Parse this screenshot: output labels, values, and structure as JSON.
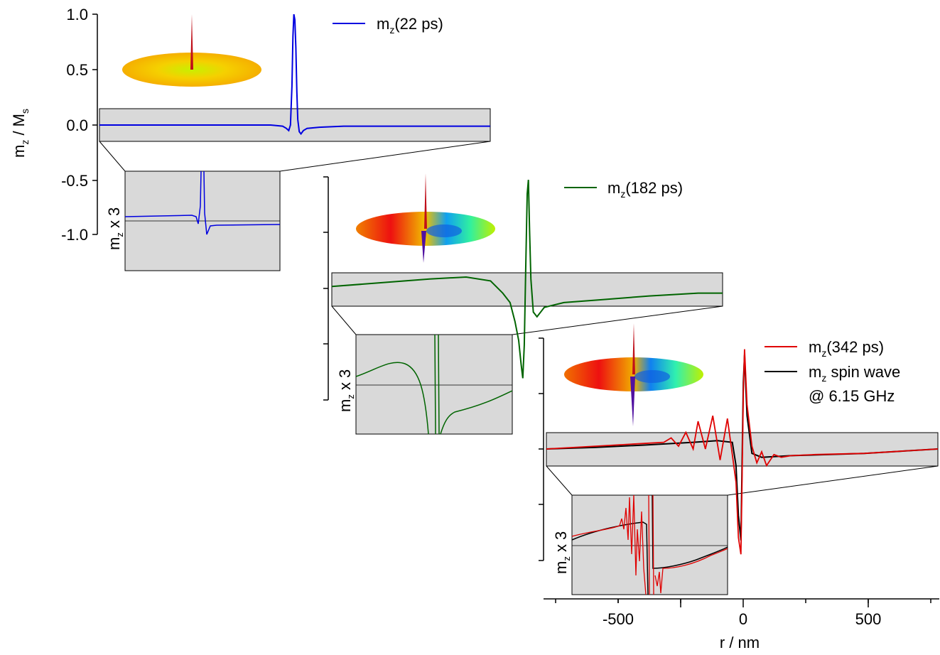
{
  "figure": {
    "ylabel": "m",
    "ylabel_sub": "z",
    "ylabel_rest": " / M",
    "ylabel_rest_sub": "s",
    "xlabel": "r / nm",
    "y_ticks": [
      "1.0",
      "0.5",
      "0.0",
      "-0.5",
      "-1.0"
    ],
    "x_ticks": [
      "-500",
      "0",
      "500"
    ],
    "inset_label": "m",
    "inset_label_sub": "z",
    "inset_label_rest": " x 3"
  },
  "colors": {
    "panel_a": "#0000e0",
    "panel_b": "#006400",
    "panel_c": "#e00000",
    "spin_wave": "#000000",
    "strip_bg": "#d9d9d9"
  },
  "chart_data": [
    {
      "type": "line",
      "panel": "a",
      "x_range": [
        -800,
        800
      ],
      "ylim": [
        -1.0,
        1.0
      ],
      "series": [
        {
          "name": "mz (22 ps)",
          "legend_main": "m",
          "legend_sub": "z",
          "legend_rest": "(22 ps)",
          "x": [
            -800,
            -600,
            -400,
            -200,
            -100,
            -50,
            -35,
            -25,
            -18,
            -12,
            -8,
            -4,
            0,
            4,
            8,
            12,
            18,
            25,
            35,
            50,
            100,
            200,
            400,
            600,
            800
          ],
          "y": [
            0.0,
            0.0,
            0.0,
            0.0,
            0.0,
            -0.01,
            -0.03,
            -0.05,
            0.0,
            0.35,
            0.8,
            1.0,
            0.95,
            0.7,
            0.3,
            0.05,
            -0.06,
            -0.08,
            -0.05,
            -0.03,
            -0.02,
            -0.01,
            -0.01,
            -0.01,
            -0.01
          ]
        }
      ]
    },
    {
      "type": "line",
      "panel": "b",
      "x_range": [
        -800,
        800
      ],
      "series": [
        {
          "name": "mz (182 ps)",
          "legend_main": "m",
          "legend_sub": "z",
          "legend_rest": "(182 ps)",
          "x": [
            -800,
            -600,
            -400,
            -250,
            -150,
            -100,
            -70,
            -50,
            -35,
            -25,
            -18,
            -12,
            -6,
            0,
            5,
            10,
            15,
            25,
            40,
            70,
            150,
            300,
            500,
            700,
            800
          ],
          "y": [
            0.02,
            0.06,
            0.1,
            0.12,
            0.08,
            -0.05,
            -0.15,
            -0.35,
            -0.55,
            -0.8,
            -0.95,
            -0.6,
            0.2,
            1.0,
            1.15,
            0.6,
            0.1,
            -0.25,
            -0.3,
            -0.2,
            -0.15,
            -0.12,
            -0.08,
            -0.05,
            -0.05
          ]
        }
      ]
    },
    {
      "type": "line",
      "panel": "c",
      "x_range": [
        -800,
        800
      ],
      "series": [
        {
          "name": "mz (342 ps)",
          "legend_main": "m",
          "legend_sub": "z",
          "legend_rest": "(342 ps)",
          "x": [
            -800,
            -600,
            -400,
            -320,
            -290,
            -260,
            -230,
            -200,
            -180,
            -150,
            -120,
            -90,
            -60,
            -40,
            -25,
            -15,
            -5,
            0,
            5,
            10,
            20,
            40,
            60,
            80,
            100,
            130,
            160,
            200,
            300,
            500,
            800
          ],
          "y": [
            0.0,
            0.05,
            0.1,
            0.12,
            0.2,
            0.05,
            0.3,
            0.0,
            0.5,
            0.0,
            0.6,
            -0.2,
            0.55,
            -0.1,
            -0.6,
            -1.6,
            -1.9,
            -0.5,
            1.0,
            1.8,
            0.8,
            0.05,
            -0.25,
            -0.05,
            -0.3,
            -0.1,
            -0.15,
            -0.12,
            -0.1,
            -0.08,
            0.0
          ]
        },
        {
          "name": "mz spin wave @ 6.15 GHz",
          "legend_main": "m",
          "legend_sub": "z",
          "legend_rest": " spin wave",
          "legend_line2": "@ 6.15 GHz",
          "x": [
            -800,
            -600,
            -400,
            -200,
            -100,
            -40,
            -25,
            -15,
            -5,
            0,
            5,
            10,
            20,
            40,
            80,
            200,
            500,
            800
          ],
          "y": [
            0.0,
            0.03,
            0.07,
            0.12,
            0.15,
            0.12,
            -0.3,
            -1.2,
            -1.65,
            -0.2,
            1.2,
            1.7,
            0.6,
            -0.08,
            -0.15,
            -0.12,
            -0.08,
            0.0
          ]
        }
      ]
    }
  ]
}
